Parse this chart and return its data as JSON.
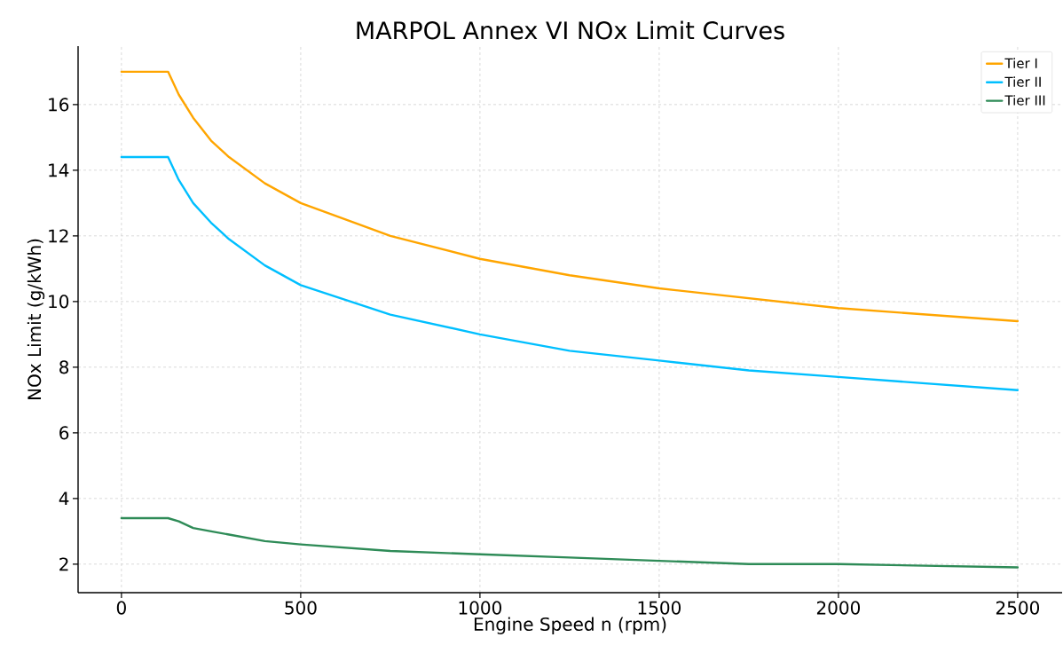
{
  "chart_data": {
    "type": "line",
    "title": "MARPOL Annex VI NOx Limit Curves",
    "xlabel": "Engine Speed n (rpm)",
    "ylabel": "NOx Limit (g/kWh)",
    "x": [
      0,
      130,
      160,
      200,
      250,
      300,
      400,
      500,
      750,
      1000,
      1250,
      1500,
      1750,
      2000,
      2500
    ],
    "series": [
      {
        "name": "Tier I",
        "color": "#ffa500",
        "values": [
          17.0,
          17.0,
          16.3,
          15.6,
          14.9,
          14.4,
          13.6,
          13.0,
          12.0,
          11.3,
          10.8,
          10.4,
          10.1,
          9.8,
          9.4
        ]
      },
      {
        "name": "Tier II",
        "color": "#00bfff",
        "values": [
          14.4,
          14.4,
          13.7,
          13.0,
          12.4,
          11.9,
          11.1,
          10.5,
          9.6,
          9.0,
          8.5,
          8.2,
          7.9,
          7.7,
          7.3
        ]
      },
      {
        "name": "Tier III",
        "color": "#2e8b57",
        "values": [
          3.4,
          3.4,
          3.3,
          3.1,
          3.0,
          2.9,
          2.7,
          2.6,
          2.4,
          2.3,
          2.2,
          2.1,
          2.0,
          2.0,
          1.9
        ]
      }
    ],
    "xlim": [
      -121,
      2624
    ],
    "ylim": [
      1.13,
      17.78
    ],
    "xticks": [
      0,
      500,
      1000,
      1500,
      2000,
      2500
    ],
    "yticks": [
      2,
      4,
      6,
      8,
      10,
      12,
      14,
      16
    ],
    "grid": true,
    "legend": "top right",
    "line_style": "solid",
    "marker": "none"
  }
}
